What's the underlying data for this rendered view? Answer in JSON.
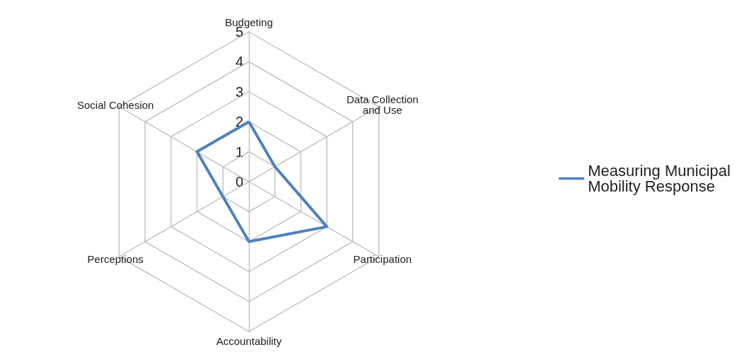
{
  "chart_data": {
    "type": "radar",
    "categories": [
      "Budgeting",
      "Data Collection and Use",
      "Participation",
      "Accountability",
      "Perceptions",
      "Social Cohesion"
    ],
    "series": [
      {
        "name": "Measuring Municipal Mobility Response",
        "color": "#4f81bd",
        "values": [
          2,
          1,
          3,
          2,
          1,
          2
        ]
      }
    ],
    "ylim": [
      0,
      5
    ],
    "yticks": [
      0,
      1,
      2,
      3,
      4,
      5
    ],
    "grid": true,
    "legend": "right",
    "marker": "none"
  }
}
